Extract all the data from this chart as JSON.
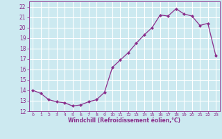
{
  "x": [
    0,
    1,
    2,
    3,
    4,
    5,
    6,
    7,
    8,
    9,
    10,
    11,
    12,
    13,
    14,
    15,
    16,
    17,
    18,
    19,
    20,
    21,
    22,
    23
  ],
  "y": [
    14.0,
    13.7,
    13.1,
    12.9,
    12.8,
    12.5,
    12.6,
    12.9,
    13.1,
    13.8,
    16.2,
    16.9,
    17.6,
    18.5,
    19.3,
    20.0,
    21.2,
    21.1,
    21.8,
    21.3,
    21.1,
    20.2,
    20.4,
    17.3
  ],
  "line_color": "#8B2E8B",
  "marker": "D",
  "marker_size": 2.0,
  "background_color": "#cce9f0",
  "grid_color": "#b0d8e0",
  "xlabel": "Windchill (Refroidissement éolien,°C)",
  "ylim": [
    12,
    22.5
  ],
  "xlim": [
    -0.5,
    23.5
  ],
  "yticks": [
    12,
    13,
    14,
    15,
    16,
    17,
    18,
    19,
    20,
    21,
    22
  ],
  "xticks": [
    0,
    1,
    2,
    3,
    4,
    5,
    6,
    7,
    8,
    9,
    10,
    11,
    12,
    13,
    14,
    15,
    16,
    17,
    18,
    19,
    20,
    21,
    22,
    23
  ],
  "tick_color": "#8B2E8B",
  "label_color": "#8B2E8B"
}
